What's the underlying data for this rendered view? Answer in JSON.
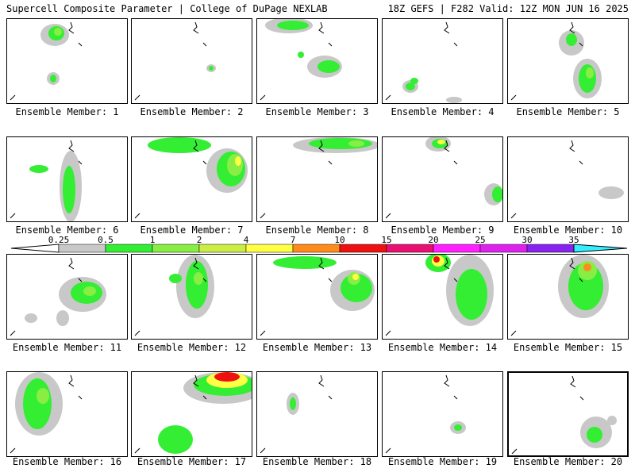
{
  "header": {
    "left": "Supercell Composite Parameter | College of DuPage NEXLAB",
    "right": "18Z GEFS | F282 Valid: 12Z MON JUN 16 2025"
  },
  "colorbar": {
    "ticks": [
      "0.25",
      "0.5",
      "1",
      "2",
      "4",
      "7",
      "10",
      "15",
      "20",
      "25",
      "30",
      "35"
    ],
    "colors": [
      "#c8c8c8",
      "#33ee33",
      "#88ee44",
      "#ccee44",
      "#ffff44",
      "#ff8c1a",
      "#ee1111",
      "#e81070",
      "#ff20ff",
      "#dd22ee",
      "#8822ee",
      "#aa66dd",
      "#33eeff"
    ]
  },
  "members": [
    {
      "label": "Ensemble Member: 1"
    },
    {
      "label": "Ensemble Member: 2"
    },
    {
      "label": "Ensemble Member: 3"
    },
    {
      "label": "Ensemble Member: 4"
    },
    {
      "label": "Ensemble Member: 5"
    },
    {
      "label": "Ensemble Member: 6"
    },
    {
      "label": "Ensemble Member: 7"
    },
    {
      "label": "Ensemble Member: 8"
    },
    {
      "label": "Ensemble Member: 9"
    },
    {
      "label": "Ensemble Member: 10"
    },
    {
      "label": "Ensemble Member: 11"
    },
    {
      "label": "Ensemble Member: 12"
    },
    {
      "label": "Ensemble Member: 13"
    },
    {
      "label": "Ensemble Member: 14"
    },
    {
      "label": "Ensemble Member: 15"
    },
    {
      "label": "Ensemble Member: 16"
    },
    {
      "label": "Ensemble Member: 17"
    },
    {
      "label": "Ensemble Member: 18"
    },
    {
      "label": "Ensemble Member: 19"
    },
    {
      "label": "Ensemble Member: 20"
    }
  ]
}
